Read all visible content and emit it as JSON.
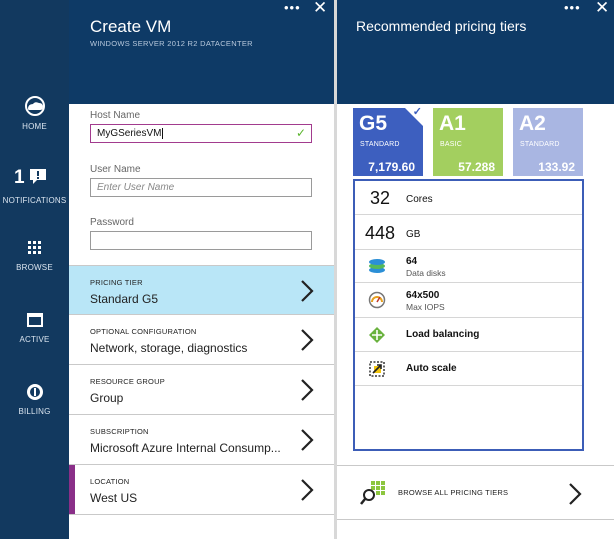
{
  "nav": {
    "items": [
      {
        "label": "HOME",
        "icon": "cloud-icon"
      },
      {
        "label": "NOTIFICATIONS",
        "count": "1",
        "icon": "notification-icon"
      },
      {
        "label": "BROWSE",
        "icon": "browse-grid-icon"
      },
      {
        "label": "ACTIVE",
        "icon": "active-window-icon"
      },
      {
        "label": "BILLING",
        "icon": "billing-icon"
      }
    ]
  },
  "create_vm": {
    "title": "Create VM",
    "subtitle": "WINDOWS SERVER 2012 R2 DATACENTER",
    "header_dots": "•••",
    "host_name": {
      "label": "Host Name",
      "value": "MyGSeriesVM"
    },
    "user_name": {
      "label": "User Name",
      "placeholder": "Enter User Name"
    },
    "password": {
      "label": "Password",
      "value": ""
    },
    "rows": [
      {
        "label": "PRICING TIER",
        "value": "Standard G5"
      },
      {
        "label": "OPTIONAL CONFIGURATION",
        "value": "Network, storage, diagnostics"
      },
      {
        "label": "RESOURCE GROUP",
        "value": "Group"
      },
      {
        "label": "SUBSCRIPTION",
        "value": "Microsoft Azure Internal Consump..."
      },
      {
        "label": "LOCATION",
        "value": "West US"
      }
    ]
  },
  "pricing": {
    "title": "Recommended pricing tiers",
    "header_dots": "•••",
    "tiers": [
      {
        "name": "G5",
        "sub": "STANDARD",
        "price": "7,179.60",
        "color": "#3d5fbf",
        "selected": true
      },
      {
        "name": "A1",
        "sub": "BASIC",
        "price": "57.288",
        "color": "#a3cf5f",
        "selected": false
      },
      {
        "name": "A2",
        "sub": "STANDARD",
        "price": "133.92",
        "color": "#a9b6e2",
        "selected": false
      }
    ],
    "features": {
      "cores": {
        "value": "32",
        "unit": "Cores"
      },
      "memory": {
        "value": "448",
        "unit": "GB"
      },
      "disks": {
        "value": "64",
        "label": "Data disks"
      },
      "iops": {
        "value": "64x500",
        "label": "Max IOPS"
      },
      "load_balancing": "Load balancing",
      "auto_scale": "Auto scale"
    },
    "browse_label": "BROWSE ALL PRICING TIERS"
  },
  "colors": {
    "nav_bg": "#12395f",
    "header_bg": "#0e3a66",
    "selected_row": "#b9e6f7",
    "accent_purple": "#8a2f88",
    "tier_border": "#3c5db7"
  }
}
